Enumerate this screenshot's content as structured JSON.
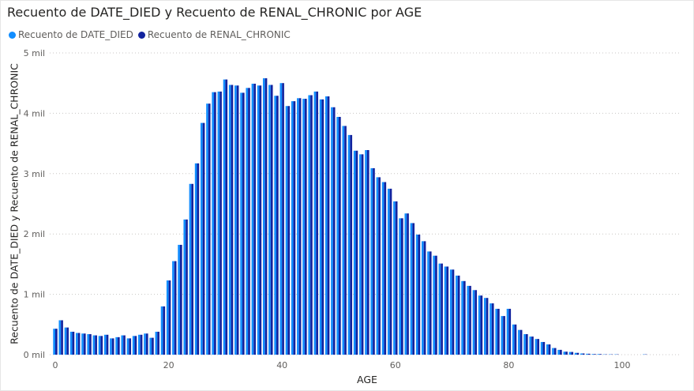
{
  "chart_data": {
    "type": "bar",
    "title": "Recuento de DATE_DIED y Recuento de RENAL_CHRONIC por AGE",
    "xlabel": "AGE",
    "ylabel": "Recuento de DATE_DIED y Recuento de RENAL_CHRONIC",
    "xlim": [
      0,
      108
    ],
    "ylim": [
      0,
      5000
    ],
    "y_ticks": [
      {
        "value": 0,
        "label": "0 mil"
      },
      {
        "value": 1000,
        "label": "1 mil"
      },
      {
        "value": 2000,
        "label": "2 mil"
      },
      {
        "value": 3000,
        "label": "3 mil"
      },
      {
        "value": 4000,
        "label": "4 mil"
      },
      {
        "value": 5000,
        "label": "5 mil"
      }
    ],
    "x_ticks": [
      0,
      20,
      40,
      60,
      80,
      100
    ],
    "grid": true,
    "legend_position": "top-left",
    "x": [
      0,
      1,
      2,
      3,
      4,
      5,
      6,
      7,
      8,
      9,
      10,
      11,
      12,
      13,
      14,
      15,
      16,
      17,
      18,
      19,
      20,
      21,
      22,
      23,
      24,
      25,
      26,
      27,
      28,
      29,
      30,
      31,
      32,
      33,
      34,
      35,
      36,
      37,
      38,
      39,
      40,
      41,
      42,
      43,
      44,
      45,
      46,
      47,
      48,
      49,
      50,
      51,
      52,
      53,
      54,
      55,
      56,
      57,
      58,
      59,
      60,
      61,
      62,
      63,
      64,
      65,
      66,
      67,
      68,
      69,
      70,
      71,
      72,
      73,
      74,
      75,
      76,
      77,
      78,
      79,
      80,
      81,
      82,
      83,
      84,
      85,
      86,
      87,
      88,
      89,
      90,
      91,
      92,
      93,
      94,
      95,
      96,
      97,
      98,
      99,
      100,
      101,
      102,
      103,
      104,
      105,
      106,
      107
    ],
    "series": [
      {
        "name": "Recuento de DATE_DIED",
        "color": "#118DFF",
        "values": [
          430,
          570,
          450,
          380,
          360,
          350,
          340,
          320,
          310,
          330,
          270,
          290,
          320,
          270,
          310,
          330,
          350,
          280,
          380,
          800,
          1230,
          1550,
          1820,
          2240,
          2830,
          3170,
          3840,
          4160,
          4350,
          4360,
          4560,
          4470,
          4460,
          4340,
          4420,
          4490,
          4460,
          4580,
          4470,
          4290,
          4500,
          4120,
          4200,
          4250,
          4240,
          4300,
          4360,
          4230,
          4280,
          4100,
          3940,
          3790,
          3640,
          3380,
          3320,
          3390,
          3090,
          2940,
          2860,
          2750,
          2540,
          2260,
          2340,
          2180,
          1990,
          1880,
          1710,
          1640,
          1510,
          1460,
          1410,
          1310,
          1220,
          1140,
          1070,
          980,
          940,
          850,
          760,
          640,
          760,
          500,
          410,
          340,
          300,
          260,
          210,
          170,
          110,
          80,
          50,
          45,
          30,
          20,
          15,
          10,
          10,
          5,
          5,
          5,
          0,
          0,
          0,
          0,
          5,
          0,
          0,
          0
        ]
      },
      {
        "name": "Recuento de RENAL_CHRONIC",
        "color": "#12239E",
        "values": [
          430,
          570,
          450,
          380,
          360,
          350,
          340,
          320,
          310,
          330,
          270,
          290,
          320,
          270,
          310,
          330,
          350,
          280,
          380,
          800,
          1230,
          1550,
          1820,
          2240,
          2830,
          3170,
          3840,
          4160,
          4350,
          4360,
          4560,
          4470,
          4460,
          4340,
          4420,
          4490,
          4460,
          4580,
          4470,
          4290,
          4500,
          4120,
          4200,
          4250,
          4240,
          4300,
          4360,
          4230,
          4280,
          4100,
          3940,
          3790,
          3640,
          3380,
          3320,
          3390,
          3090,
          2940,
          2860,
          2750,
          2540,
          2260,
          2340,
          2180,
          1990,
          1880,
          1710,
          1640,
          1510,
          1460,
          1410,
          1310,
          1220,
          1140,
          1070,
          980,
          940,
          850,
          760,
          640,
          760,
          500,
          410,
          340,
          300,
          260,
          210,
          170,
          110,
          80,
          50,
          45,
          30,
          20,
          15,
          10,
          10,
          5,
          5,
          5,
          0,
          0,
          0,
          0,
          5,
          0,
          0,
          0
        ]
      }
    ]
  }
}
